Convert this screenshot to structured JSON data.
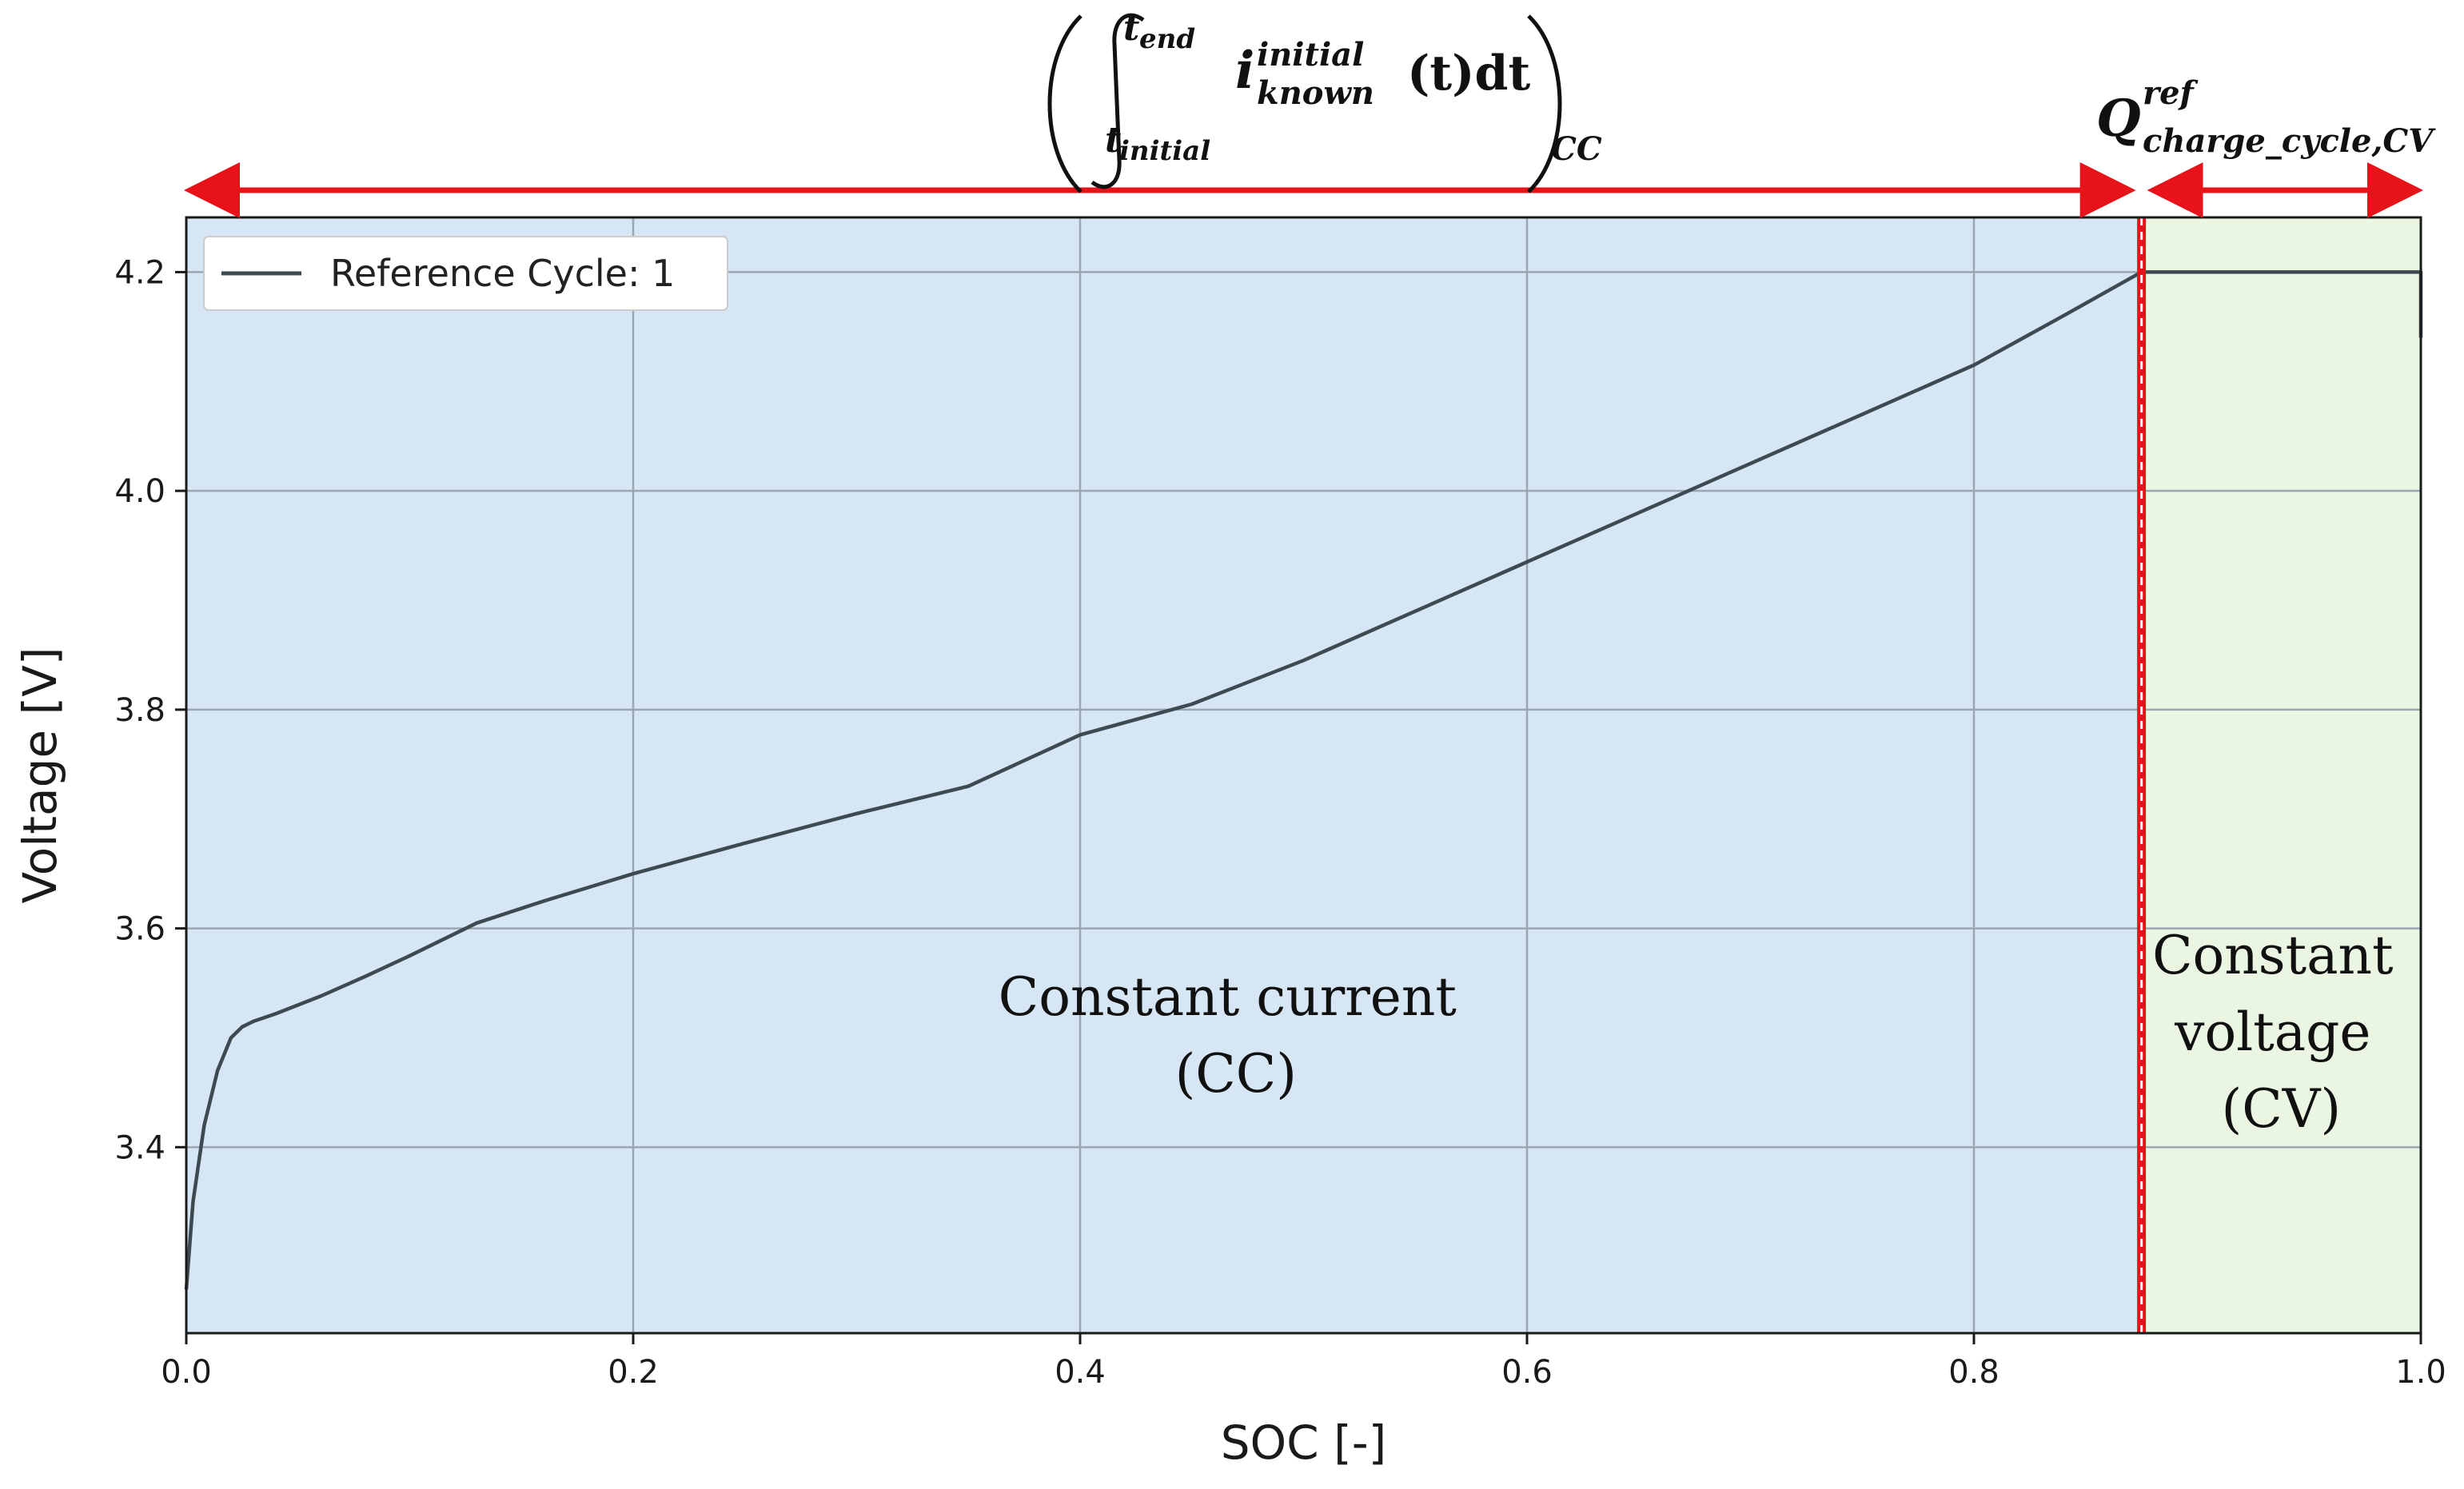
{
  "chart_data": {
    "type": "line",
    "title": "",
    "xlabel": "SOC [-]",
    "ylabel": "Voltage [V]",
    "xlim": [
      0.0,
      1.0
    ],
    "ylim": [
      3.23,
      4.25
    ],
    "xticks": [
      0.0,
      0.2,
      0.4,
      0.6,
      0.8,
      1.0
    ],
    "xtick_labels": [
      "0.0",
      "0.2",
      "0.4",
      "0.6",
      "0.8",
      "1.0"
    ],
    "yticks": [
      3.4,
      3.6,
      3.8,
      4.0,
      4.2
    ],
    "ytick_labels": [
      "3.4",
      "3.6",
      "3.8",
      "4.0",
      "4.2"
    ],
    "grid": true,
    "legend_position": "top-left",
    "series": [
      {
        "name": "Reference Cycle: 1",
        "color": "#3c4a52",
        "x": [
          0.0,
          0.003,
          0.008,
          0.014,
          0.02,
          0.025,
          0.03,
          0.04,
          0.06,
          0.08,
          0.1,
          0.13,
          0.16,
          0.2,
          0.25,
          0.3,
          0.35,
          0.4,
          0.45,
          0.5,
          0.55,
          0.6,
          0.65,
          0.7,
          0.75,
          0.8,
          0.84,
          0.875,
          0.9,
          0.95,
          1.0,
          1.0
        ],
        "y": [
          3.27,
          3.35,
          3.42,
          3.47,
          3.5,
          3.51,
          3.515,
          3.522,
          3.538,
          3.556,
          3.575,
          3.605,
          3.625,
          3.65,
          3.678,
          3.705,
          3.73,
          3.777,
          3.805,
          3.845,
          3.89,
          3.935,
          3.98,
          4.025,
          4.07,
          4.115,
          4.16,
          4.2,
          4.2,
          4.2,
          4.2,
          4.14
        ]
      }
    ],
    "regions": [
      {
        "name": "Constant current (CC)",
        "label_lines": [
          "Constant current",
          "(CC)"
        ],
        "x_start": 0.0,
        "x_end": 0.875,
        "color": "#d6e6f4"
      },
      {
        "name": "Constant voltage (CV)",
        "label_lines": [
          "Constant",
          "voltage",
          "(CV)"
        ],
        "x_start": 0.875,
        "x_end": 1.0,
        "color": "#eaf5e2"
      }
    ],
    "boundary_x": 0.875,
    "annotations": {
      "cc_integral": {
        "integral_upper": "t",
        "integral_upper_sub": "end",
        "integral_lower": "t",
        "integral_lower_sub": "initial",
        "var": "i",
        "var_sup": "initial",
        "var_sub": "known",
        "arg": "(t)dt",
        "outer_sub": "CC"
      },
      "cv_charge": {
        "var": "Q",
        "sup": "ref",
        "sub": "charge_cycle,CV"
      }
    },
    "colors": {
      "arrow": "#e8121b",
      "boundary": "#e8121b",
      "grid": "#9aa7b1"
    }
  }
}
